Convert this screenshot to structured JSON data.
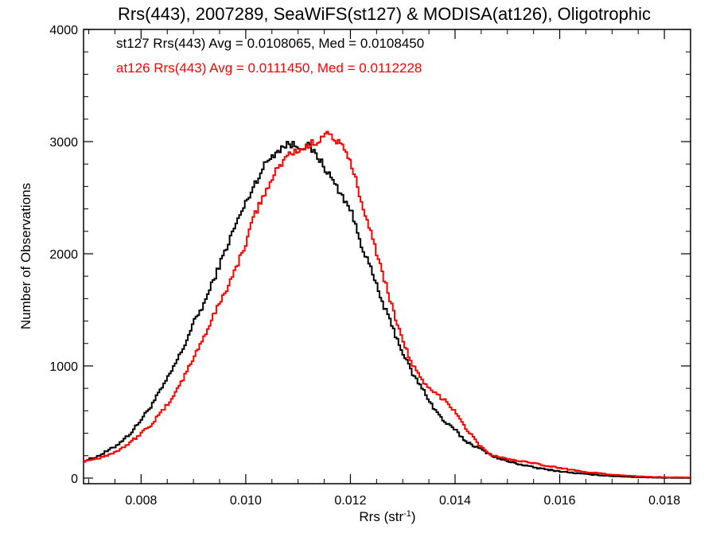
{
  "chart_data": {
    "type": "line",
    "title": "Rrs(443), 2007289, SeaWiFS(st127) & MODISA(at126), Oligotrophic",
    "xlabel_main": "Rrs (str",
    "xlabel_sup": "-1",
    "xlabel_end": ")",
    "ylabel": "Number of Observations",
    "xlim": [
      0.0069,
      0.0185
    ],
    "ylim": [
      -50,
      4000
    ],
    "xticks": [
      0.008,
      0.01,
      0.012,
      0.014,
      0.016,
      0.018
    ],
    "xtick_labels": [
      "0.008",
      "0.010",
      "0.012",
      "0.014",
      "0.016",
      "0.018"
    ],
    "yticks": [
      0,
      1000,
      2000,
      3000,
      4000
    ],
    "ytick_labels": [
      "0",
      "1000",
      "2000",
      "3000",
      "4000"
    ],
    "legend": [
      {
        "text": "st127 Rrs(443) Avg = 0.0108065, Med = 0.0108450",
        "color": "#000000"
      },
      {
        "text": "at126 Rrs(443) Avg = 0.0111450, Med = 0.0112228",
        "color": "#ff0000"
      }
    ],
    "series": [
      {
        "color": "#000000",
        "x": [
          0.0069,
          0.0072,
          0.0075,
          0.0078,
          0.008,
          0.0082,
          0.0085,
          0.0088,
          0.009,
          0.0092,
          0.0095,
          0.0098,
          0.01,
          0.0102,
          0.0104,
          0.0106,
          0.0108,
          0.011,
          0.0112,
          0.0114,
          0.0116,
          0.0118,
          0.012,
          0.0122,
          0.0124,
          0.0126,
          0.0128,
          0.013,
          0.0132,
          0.0134,
          0.0136,
          0.0138,
          0.014,
          0.0142,
          0.0144,
          0.0146,
          0.0148,
          0.015,
          0.0155,
          0.016,
          0.0165,
          0.017,
          0.0175,
          0.018,
          0.0185
        ],
        "y": [
          150,
          200,
          280,
          400,
          520,
          650,
          880,
          1150,
          1380,
          1550,
          1900,
          2250,
          2450,
          2650,
          2820,
          2920,
          2980,
          2960,
          2960,
          2850,
          2700,
          2550,
          2400,
          2100,
          1850,
          1580,
          1350,
          1120,
          920,
          780,
          620,
          500,
          430,
          330,
          280,
          230,
          180,
          150,
          95,
          60,
          35,
          18,
          8,
          3,
          1
        ]
      },
      {
        "color": "#ff0000",
        "x": [
          0.0069,
          0.0072,
          0.0075,
          0.0078,
          0.008,
          0.0082,
          0.0085,
          0.0088,
          0.009,
          0.0092,
          0.0095,
          0.0098,
          0.01,
          0.0102,
          0.0104,
          0.0106,
          0.0108,
          0.011,
          0.0112,
          0.0114,
          0.0115,
          0.0116,
          0.0118,
          0.012,
          0.0122,
          0.0124,
          0.0126,
          0.0128,
          0.013,
          0.0132,
          0.0134,
          0.0136,
          0.0138,
          0.014,
          0.0142,
          0.0144,
          0.0146,
          0.0148,
          0.015,
          0.0155,
          0.016,
          0.0165,
          0.017,
          0.0175,
          0.018,
          0.0185
        ],
        "y": [
          150,
          180,
          230,
          320,
          400,
          480,
          650,
          880,
          1070,
          1260,
          1560,
          1850,
          2100,
          2380,
          2570,
          2750,
          2880,
          2920,
          2960,
          3020,
          3080,
          3060,
          2980,
          2820,
          2500,
          2180,
          1850,
          1520,
          1230,
          1000,
          840,
          760,
          700,
          600,
          450,
          330,
          230,
          190,
          170,
          130,
          90,
          55,
          30,
          15,
          8,
          5
        ]
      }
    ]
  }
}
